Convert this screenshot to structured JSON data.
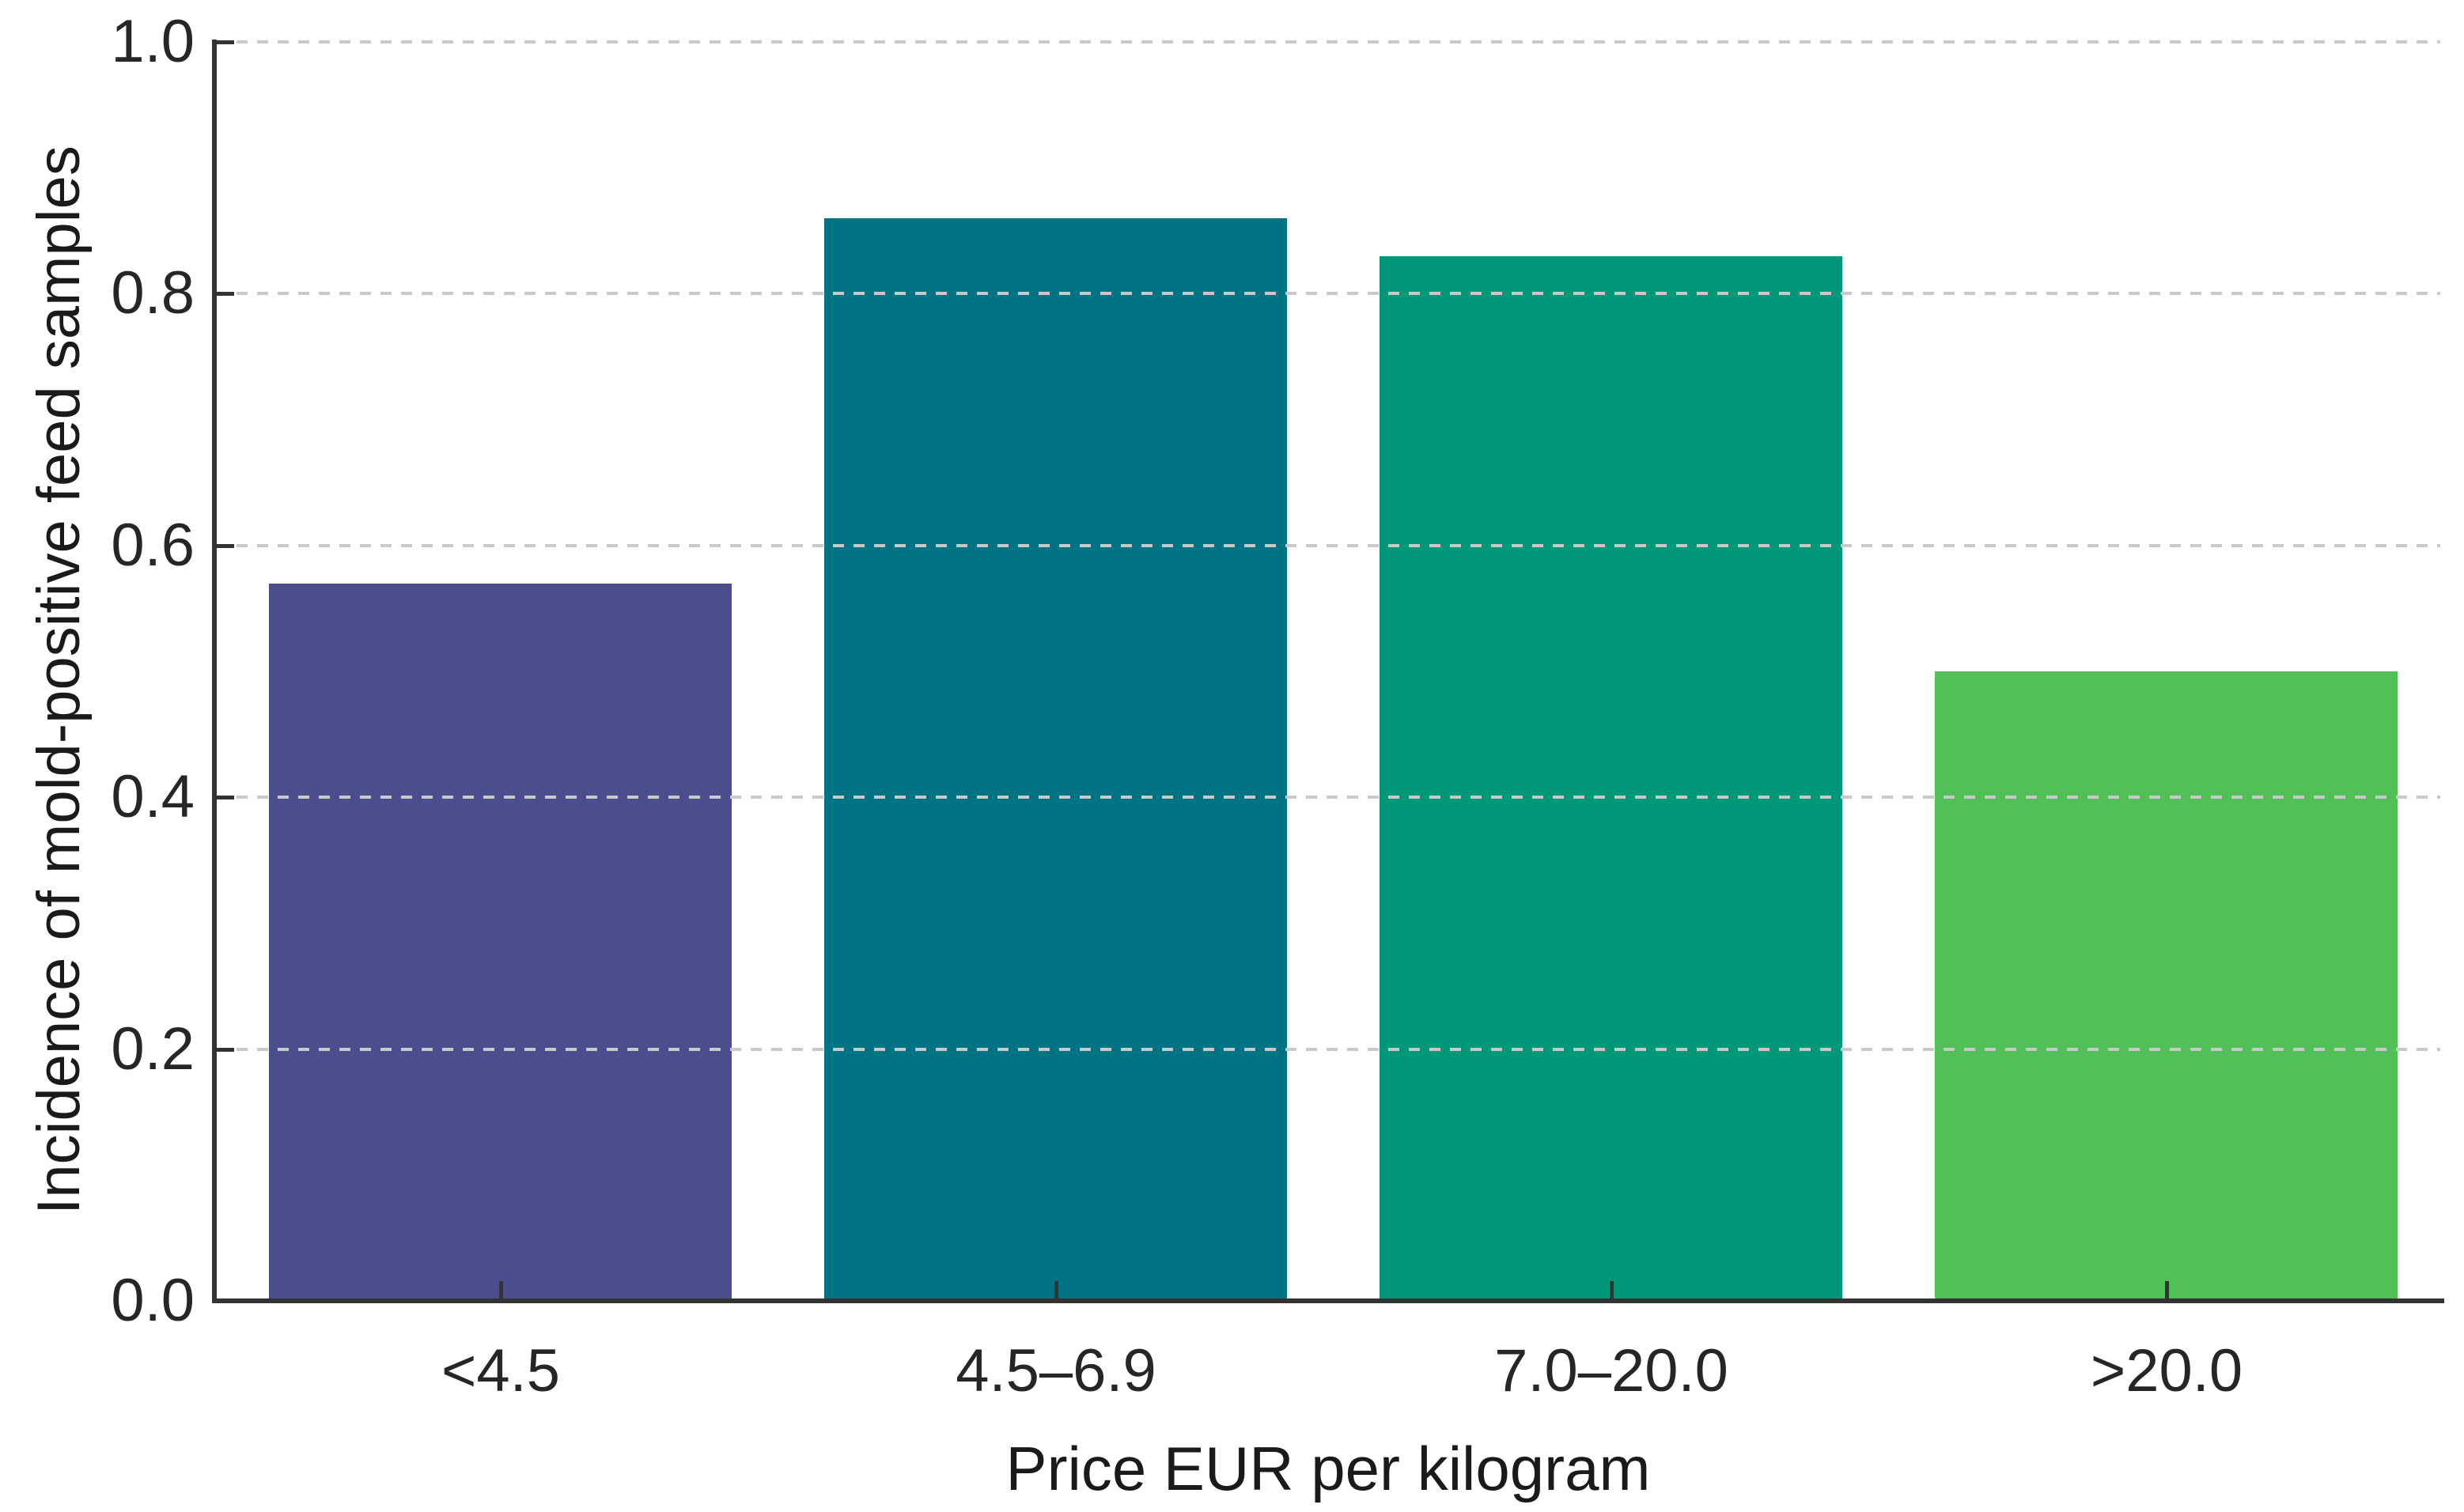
{
  "figure": {
    "background_color": "#ffffff",
    "axis_color": "#333333",
    "grid_color": "#c9c9c9",
    "text_color": "#262626"
  },
  "chart_data": {
    "type": "bar",
    "title": "",
    "categories": [
      "<4.5",
      "4.5–6.9",
      "7.0–20.0",
      ">20.0"
    ],
    "values": [
      0.57,
      0.86,
      0.83,
      0.5
    ],
    "bar_colors": [
      "#4a4e8c",
      "#007483",
      "#009878",
      "#52c058"
    ],
    "xlabel": "Price EUR per kilogram",
    "ylabel": "Incidence of mold-positive feed samples",
    "ylim": [
      0.0,
      1.0
    ],
    "yticks": [
      0.0,
      0.2,
      0.4,
      0.6,
      0.8,
      1.0
    ],
    "ytick_labels": [
      "0.0",
      "0.2",
      "0.4",
      "0.6",
      "0.8",
      "1.0"
    ],
    "grid": "horizontal dashed gridlines at y ticks, drawn over bars",
    "tick_direction": "in",
    "legend": "none"
  }
}
